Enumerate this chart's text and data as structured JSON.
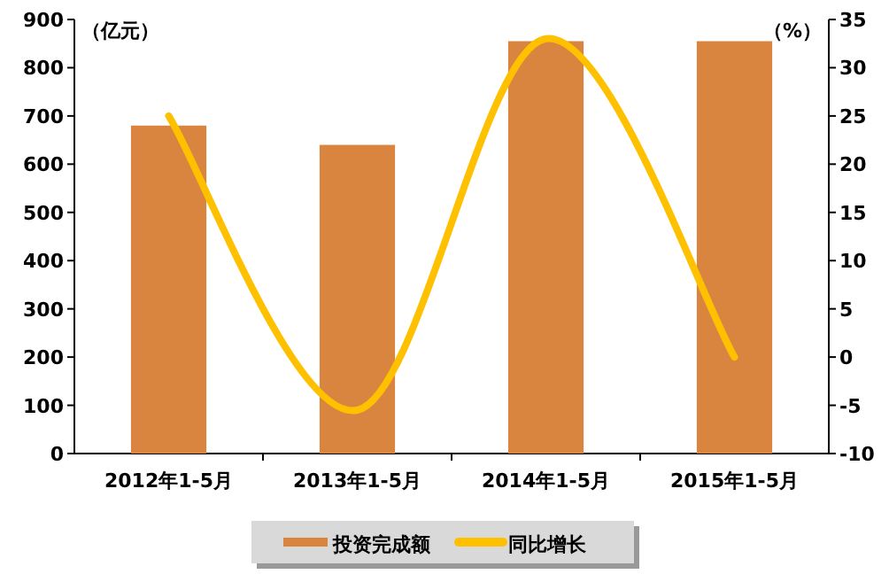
{
  "chart_data": {
    "type": "bar",
    "categories": [
      "2012年1-5月",
      "2013年1-5月",
      "2014年1-5月",
      "2015年1-5月"
    ],
    "series": [
      {
        "name": "投资完成额",
        "color": "#d9843f",
        "values": [
          680,
          640,
          855,
          855
        ]
      },
      {
        "name": "同比增长",
        "type": "line",
        "axis": "y2",
        "color": "#ffc000",
        "values": [
          25,
          -5.5,
          33,
          0
        ]
      }
    ],
    "ylabel": "（亿元）",
    "y2label": "（%）",
    "ylim": [
      0,
      900
    ],
    "yticks": [
      0,
      100,
      200,
      300,
      400,
      500,
      600,
      700,
      800,
      900
    ],
    "y2lim": [
      -10,
      35
    ],
    "y2ticks": [
      -10,
      -5,
      0,
      5,
      10,
      15,
      20,
      25,
      30,
      35
    ],
    "grid": false,
    "legend": "bottom",
    "marker": "none",
    "line_style": "solid"
  }
}
